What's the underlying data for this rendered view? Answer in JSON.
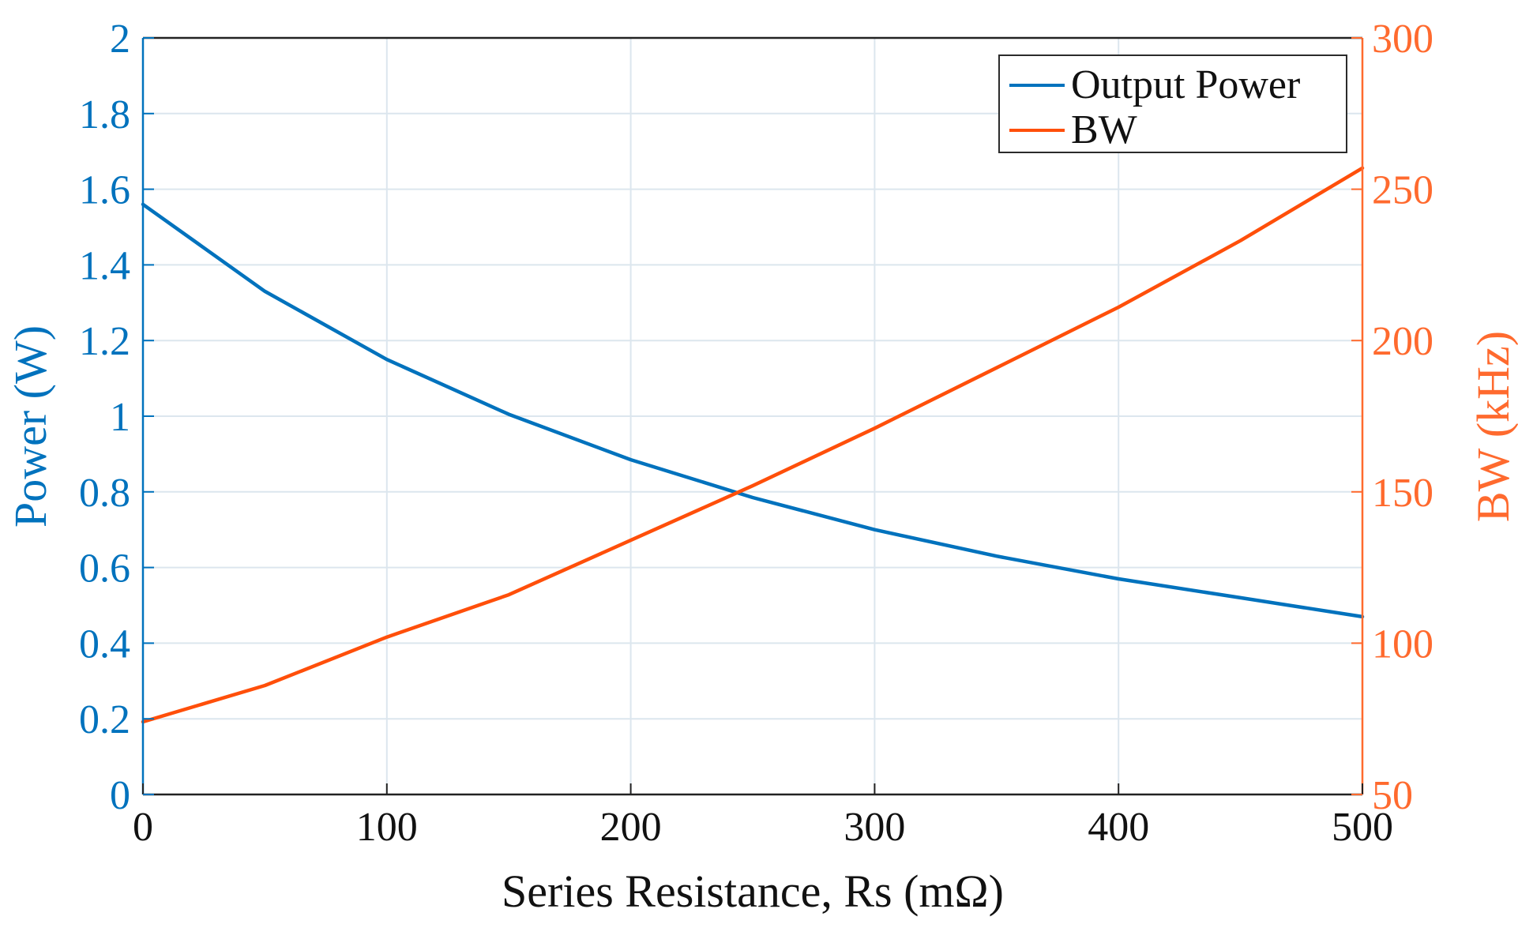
{
  "chart_data": {
    "type": "line",
    "xlabel": "Series Resistance, Rs (mΩ)",
    "ylabel_left": "Power (W)",
    "ylabel_right": "BW (kHz)",
    "x_ticks": [
      "0",
      "100",
      "200",
      "300",
      "400",
      "500"
    ],
    "y_left_ticks": [
      "0",
      "0.2",
      "0.4",
      "0.6",
      "0.8",
      "1",
      "1.2",
      "1.4",
      "1.6",
      "1.8",
      "2"
    ],
    "y_right_ticks": [
      "50",
      "100",
      "150",
      "200",
      "250",
      "300"
    ],
    "xlim": [
      0,
      500
    ],
    "ylim_left": [
      0,
      2
    ],
    "ylim_right": [
      50,
      300
    ],
    "grid": true,
    "legend_position": "top-right",
    "colors": {
      "left_axis": "#0072BD",
      "right_axis": "#FF6A2E",
      "grid": "#DCE6EE",
      "axis_x": "#222222"
    },
    "series": [
      {
        "name": "Output Power",
        "axis": "left",
        "color": "#0072BD",
        "x": [
          0,
          50,
          100,
          150,
          200,
          250,
          300,
          350,
          400,
          450,
          500
        ],
        "y": [
          1.56,
          1.33,
          1.15,
          1.005,
          0.885,
          0.785,
          0.7,
          0.63,
          0.57,
          0.52,
          0.47
        ]
      },
      {
        "name": "BW",
        "axis": "right",
        "color": "#FF4F0A",
        "x": [
          0,
          50,
          100,
          150,
          200,
          250,
          300,
          350,
          400,
          450,
          500
        ],
        "y": [
          74,
          86,
          102,
          116,
          134,
          152,
          171,
          191,
          211,
          233,
          257
        ]
      }
    ]
  }
}
